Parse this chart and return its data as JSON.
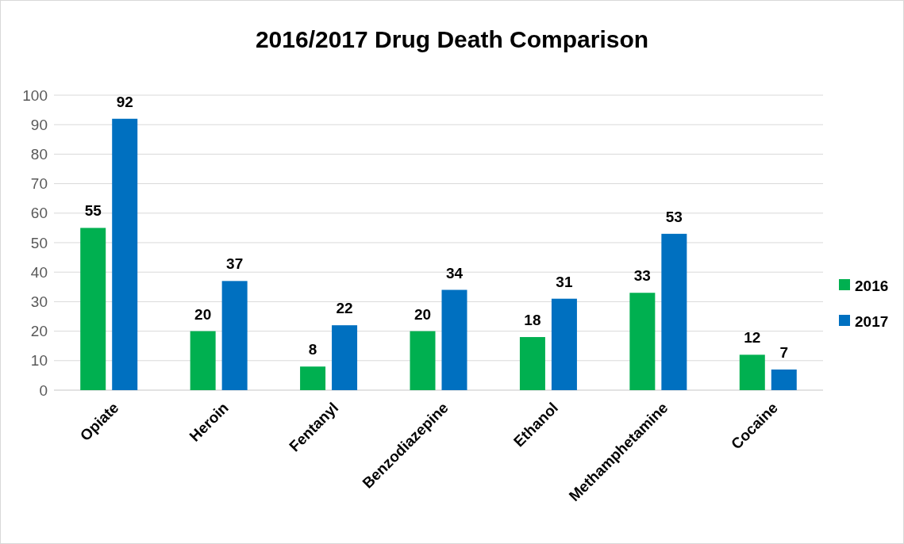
{
  "chart_data": {
    "type": "bar",
    "title": "2016/2017 Drug Death Comparison",
    "categories": [
      "Opiate",
      "Heroin",
      "Fentanyl",
      "Benzodiazepine",
      "Ethanol",
      "Methamphetamine",
      "Cocaine"
    ],
    "series": [
      {
        "name": "2016",
        "color": "#00b050",
        "values": [
          55,
          20,
          8,
          20,
          18,
          33,
          12
        ]
      },
      {
        "name": "2017",
        "color": "#0070c0",
        "values": [
          92,
          37,
          22,
          34,
          31,
          53,
          7
        ]
      }
    ],
    "ylim": [
      0,
      100
    ],
    "yticks": [
      0,
      10,
      20,
      30,
      40,
      50,
      60,
      70,
      80,
      90,
      100
    ],
    "grid": "y",
    "legend": "right",
    "data_labels": true
  }
}
